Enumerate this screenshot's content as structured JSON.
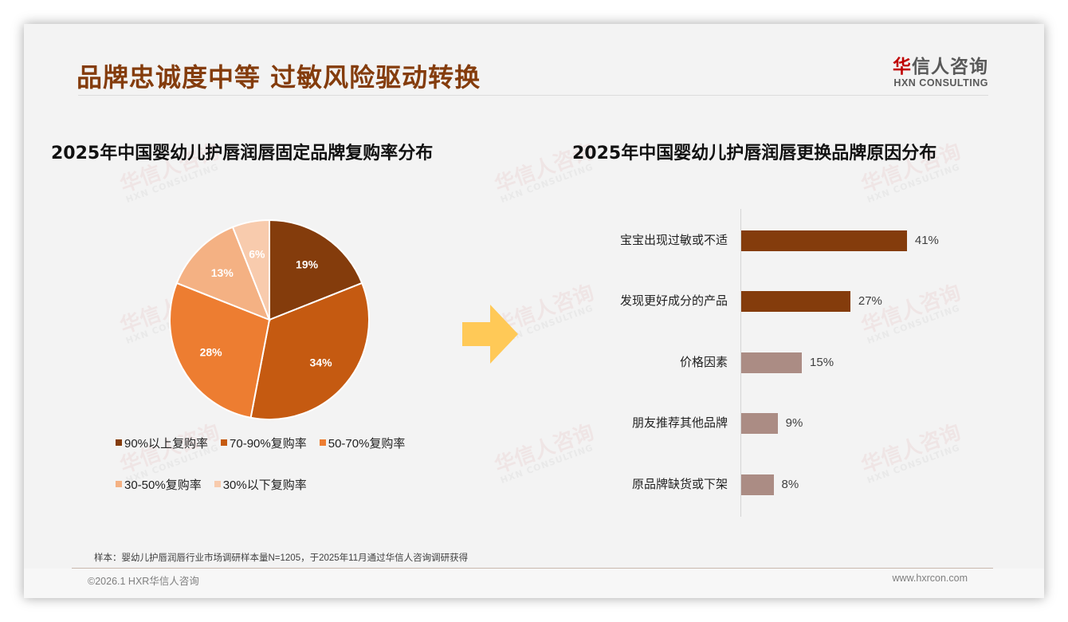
{
  "slide": {
    "title": "品牌忠诚度中等 过敏风险驱动转换",
    "logo": {
      "cn_red": "华",
      "cn_rest": "信人咨询",
      "en": "HXN CONSULTING"
    },
    "watermark": {
      "cn": "华信人咨询",
      "en": "HXN CONSULTING"
    },
    "source": "样本：婴幼儿护唇润唇行业市场调研样本量N=1205，于2025年11月通过华信人咨询调研获得",
    "copyright": "©2026.1 HXR华信人咨询",
    "website": "www.hxrcon.com",
    "arrow_color": "#FFC957"
  },
  "chart_data": [
    {
      "type": "pie",
      "title": "2025年中国婴幼儿护唇润唇固定品牌复购率分布",
      "categories": [
        "90%以上复购率",
        "70-90%复购率",
        "50-70%复购率",
        "30-50%复购率",
        "30%以下复购率"
      ],
      "values": [
        19,
        34,
        28,
        13,
        6
      ],
      "labels": [
        "19%",
        "34%",
        "28%",
        "13%",
        "6%"
      ],
      "colors": [
        "#843C0C",
        "#C55A11",
        "#ED7D31",
        "#F4B183",
        "#F8CBAD"
      ],
      "start_angle": "12 o'clock, clockwise",
      "legend_position": "bottom"
    },
    {
      "type": "bar",
      "orientation": "horizontal",
      "title": "2025年中国婴幼儿护唇润唇更换品牌原因分布",
      "categories": [
        "宝宝出现过敏或不适",
        "发现更好成分的产品",
        "价格因素",
        "朋友推荐其他品牌",
        "原品牌缺货或下架"
      ],
      "values": [
        41,
        27,
        15,
        9,
        8
      ],
      "labels": [
        "41%",
        "27%",
        "15%",
        "9%",
        "8%"
      ],
      "colors": [
        "#843C0C",
        "#843C0C",
        "#AB8C84",
        "#AB8C84",
        "#AB8C84"
      ],
      "grid": false,
      "legend": false
    }
  ]
}
